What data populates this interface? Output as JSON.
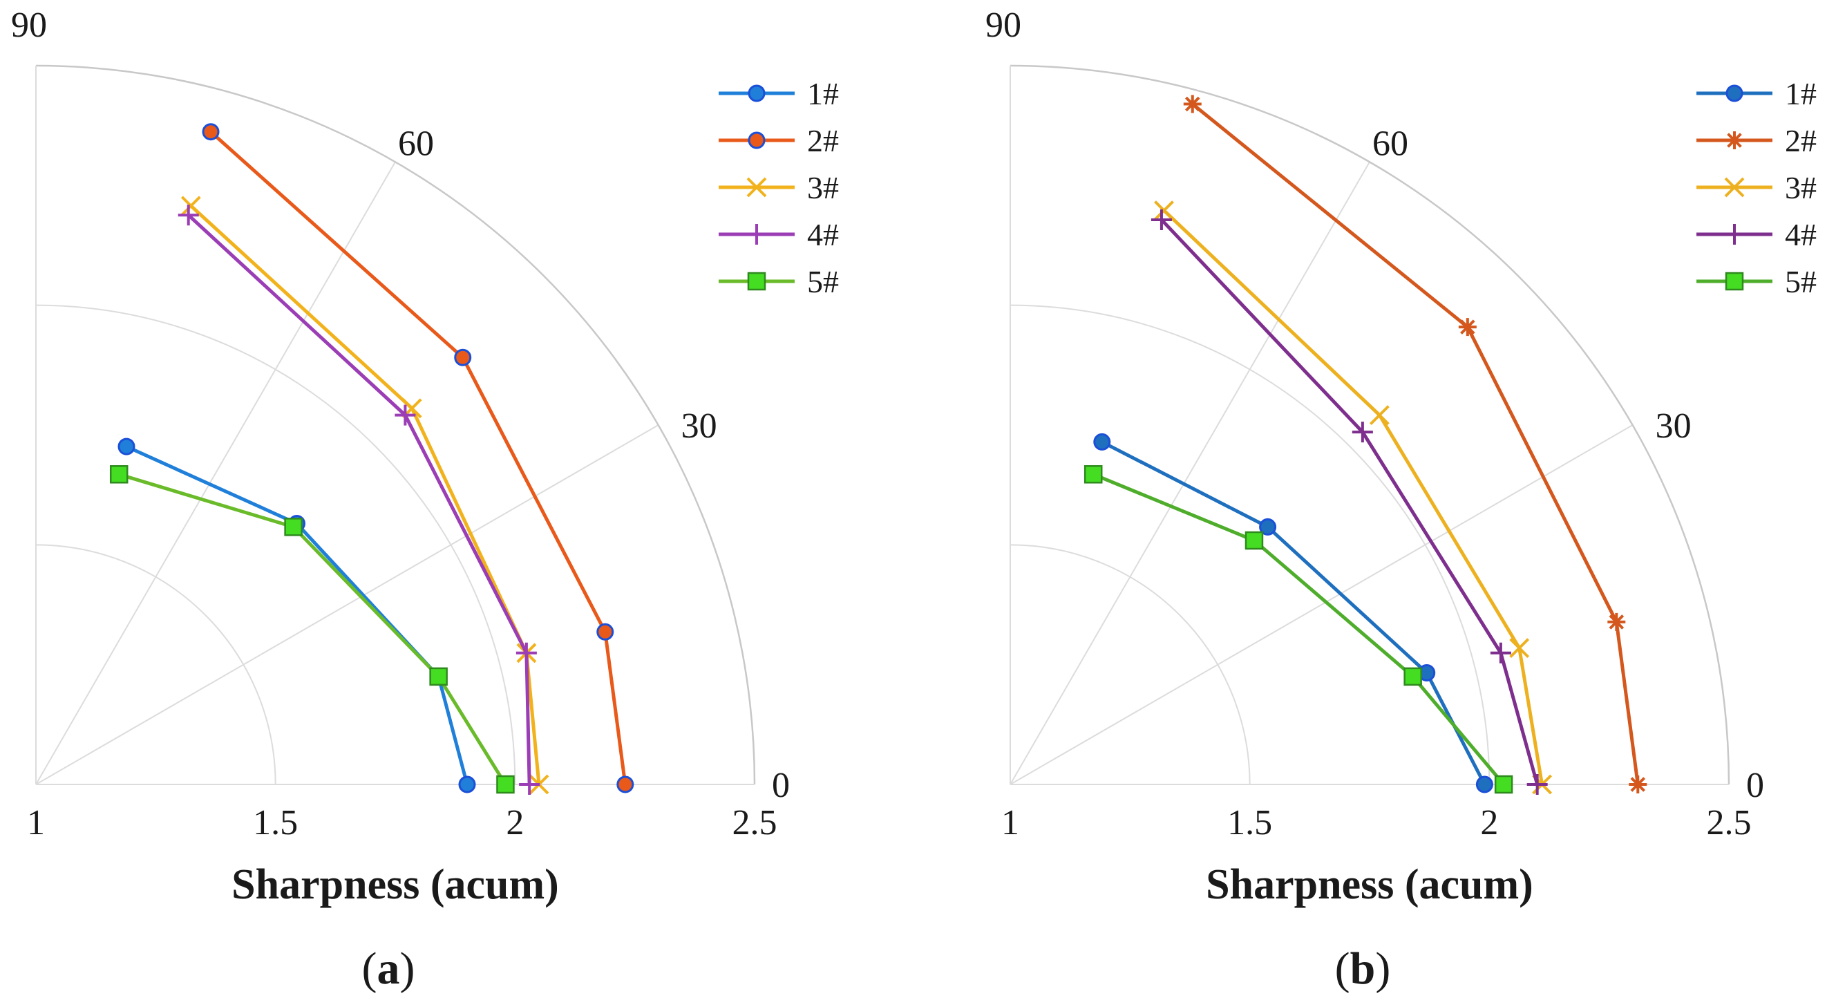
{
  "chart_data": [
    {
      "type": "polar-line",
      "panel_label": "a",
      "xlabel": "Sharpness (acum)",
      "rlim": [
        1,
        2.5
      ],
      "r_ticks": [
        "1",
        "1.5",
        "2",
        "2.5"
      ],
      "angle_ticks": [
        "0",
        "30",
        "60",
        "90"
      ],
      "legend_position": "top-right",
      "series": [
        {
          "name": "1#",
          "color": "#1f7fd9",
          "marker": "circle",
          "angles": [
            0,
            15,
            45,
            75
          ],
          "values": [
            1.9,
            1.87,
            1.77,
            1.73
          ]
        },
        {
          "name": "2#",
          "color": "#e8591a",
          "marker": "circle",
          "angles": [
            0,
            15,
            45,
            75
          ],
          "values": [
            2.23,
            2.23,
            2.26,
            2.41
          ]
        },
        {
          "name": "3#",
          "color": "#f2b21b",
          "marker": "x",
          "angles": [
            0,
            15,
            45,
            75
          ],
          "values": [
            2.05,
            2.06,
            2.11,
            2.25
          ]
        },
        {
          "name": "4#",
          "color": "#9b3db5",
          "marker": "plus",
          "angles": [
            0,
            15,
            45,
            75
          ],
          "values": [
            2.03,
            2.06,
            2.09,
            2.23
          ]
        },
        {
          "name": "5#",
          "color": "#6abb2a",
          "marker": "square",
          "angles": [
            0,
            15,
            45,
            75
          ],
          "values": [
            1.98,
            1.87,
            1.76,
            1.67
          ]
        }
      ]
    },
    {
      "type": "polar-line",
      "panel_label": "b",
      "xlabel": "Sharpness (acum)",
      "rlim": [
        1,
        2.5
      ],
      "r_ticks": [
        "1",
        "1.5",
        "2",
        "2.5"
      ],
      "angle_ticks": [
        "0",
        "30",
        "60",
        "90"
      ],
      "legend_position": "top-right",
      "series": [
        {
          "name": "1#",
          "color": "#1f6fbf",
          "marker": "circle",
          "angles": [
            0,
            15,
            45,
            75
          ],
          "values": [
            1.99,
            1.9,
            1.76,
            1.74
          ]
        },
        {
          "name": "2#",
          "color": "#d4581e",
          "marker": "asterisk",
          "angles": [
            0,
            15,
            45,
            75
          ],
          "values": [
            2.31,
            2.31,
            2.35,
            2.47
          ]
        },
        {
          "name": "3#",
          "color": "#edb120",
          "marker": "x",
          "angles": [
            0,
            15,
            45,
            75
          ],
          "values": [
            2.11,
            2.1,
            2.09,
            2.24
          ]
        },
        {
          "name": "4#",
          "color": "#7e2f8e",
          "marker": "plus",
          "angles": [
            0,
            15,
            45,
            75
          ],
          "values": [
            2.1,
            2.06,
            2.04,
            2.22
          ]
        },
        {
          "name": "5#",
          "color": "#4fad2c",
          "marker": "square",
          "angles": [
            0,
            15,
            45,
            75
          ],
          "values": [
            2.03,
            1.87,
            1.72,
            1.67
          ]
        }
      ]
    }
  ]
}
